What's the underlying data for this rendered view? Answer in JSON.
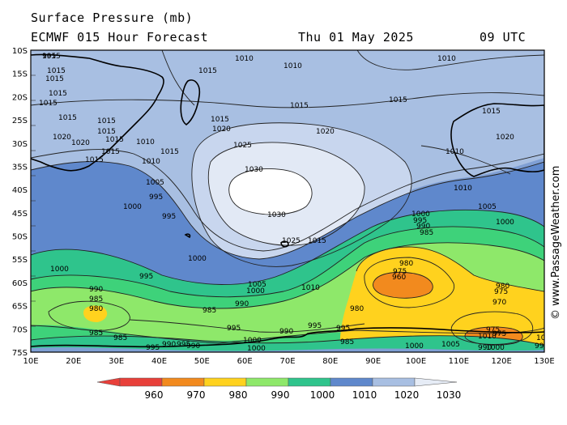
{
  "header": {
    "line1": "Surface Pressure (mb)",
    "line2": "ECMWF 015 Hour Forecast",
    "date": "Thu 01 May 2025",
    "time": "09 UTC"
  },
  "credit": "© www.PassageWeather.com",
  "lat_labels": [
    "10S",
    "15S",
    "20S",
    "25S",
    "30S",
    "35S",
    "40S",
    "45S",
    "50S",
    "55S",
    "60S",
    "65S",
    "70S",
    "75S"
  ],
  "lon_labels": [
    "10E",
    "20E",
    "30E",
    "40E",
    "50E",
    "60E",
    "70E",
    "80E",
    "90E",
    "100E",
    "110E",
    "120E",
    "130E"
  ],
  "legend": {
    "values": [
      "960",
      "970",
      "980",
      "990",
      "1000",
      "1010",
      "1020",
      "1030"
    ],
    "colors": [
      "#e8403a",
      "#f28a1e",
      "#ffd21e",
      "#8ee86a",
      "#2fc48c",
      "#5f88cc",
      "#a8bfe2",
      "#e6ecf6"
    ]
  },
  "map_colors": {
    "bands": {
      "lt1010": "#5f88cc",
      "b1010_1015": "#7f9fd4",
      "b1015_1020": "#a8bfe2",
      "b1020_1025": "#c8d6ee",
      "b1025_1030": "#e2e9f5",
      "gt1030": "#ffffff",
      "b1000_1005": "#2fc48c",
      "b995_1000": "#3ed27a",
      "b990_995": "#8ee86a",
      "b980_990": "#ffd21e",
      "b970_980": "#f28a1e"
    },
    "land_outline": "#000000",
    "contour": "#222222"
  },
  "isobar_labels": [
    {
      "t": "1015"
    },
    {
      "t": "1015"
    },
    {
      "t": "1015"
    },
    {
      "t": "1015"
    },
    {
      "t": "1015"
    },
    {
      "t": "1015"
    },
    {
      "t": "1015"
    },
    {
      "t": "1015"
    },
    {
      "t": "1015"
    },
    {
      "t": "1015"
    },
    {
      "t": "1015"
    },
    {
      "t": "1020"
    },
    {
      "t": "1020"
    },
    {
      "t": "1010"
    },
    {
      "t": "1015"
    },
    {
      "t": "1010"
    },
    {
      "t": "1005"
    },
    {
      "t": "995"
    },
    {
      "t": "995"
    },
    {
      "t": "1000"
    },
    {
      "t": "1000"
    },
    {
      "t": "995"
    },
    {
      "t": "1000"
    },
    {
      "t": "990"
    },
    {
      "t": "985"
    },
    {
      "t": "980"
    },
    {
      "t": "985"
    },
    {
      "t": "990"
    },
    {
      "t": "985"
    },
    {
      "t": "990"
    },
    {
      "t": "995"
    },
    {
      "t": "1000"
    },
    {
      "t": "1005"
    },
    {
      "t": "1000"
    },
    {
      "t": "1010"
    },
    {
      "t": "1015"
    },
    {
      "t": "1015"
    },
    {
      "t": "1010"
    },
    {
      "t": "1010"
    },
    {
      "t": "1010"
    },
    {
      "t": "1015"
    },
    {
      "t": "1015"
    },
    {
      "t": "1020"
    },
    {
      "t": "1020"
    },
    {
      "t": "1025"
    },
    {
      "t": "1030"
    },
    {
      "t": "1030"
    },
    {
      "t": "1025"
    },
    {
      "t": "1010"
    },
    {
      "t": "1000"
    },
    {
      "t": "995"
    },
    {
      "t": "990"
    },
    {
      "t": "985"
    },
    {
      "t": "980"
    },
    {
      "t": "975"
    },
    {
      "t": "960"
    },
    {
      "t": "980"
    },
    {
      "t": "980"
    },
    {
      "t": "975"
    },
    {
      "t": "970"
    },
    {
      "t": "975"
    },
    {
      "t": "975"
    },
    {
      "t": "985"
    },
    {
      "t": "995"
    },
    {
      "t": "990"
    },
    {
      "t": "985"
    },
    {
      "t": "1000"
    },
    {
      "t": "1010"
    },
    {
      "t": "1005"
    },
    {
      "t": "1000"
    },
    {
      "t": "1015"
    },
    {
      "t": "1010"
    },
    {
      "t": "1005"
    },
    {
      "t": "1000"
    },
    {
      "t": "1020"
    },
    {
      "t": "1015"
    },
    {
      "t": "1010"
    },
    {
      "t": "990"
    },
    {
      "t": "995"
    },
    {
      "t": "995"
    },
    {
      "t": "1000"
    },
    {
      "t": "990"
    },
    {
      "t": "995"
    },
    {
      "t": "1000"
    },
    {
      "t": "1005"
    },
    {
      "t": "1010"
    },
    {
      "t": "990"
    },
    {
      "t": "995"
    },
    {
      "t": "1005"
    },
    {
      "t": "1000"
    },
    {
      "t": "1005"
    },
    {
      "t": "985"
    },
    {
      "t": "990"
    },
    {
      "t": "1000"
    },
    {
      "t": "995"
    }
  ]
}
